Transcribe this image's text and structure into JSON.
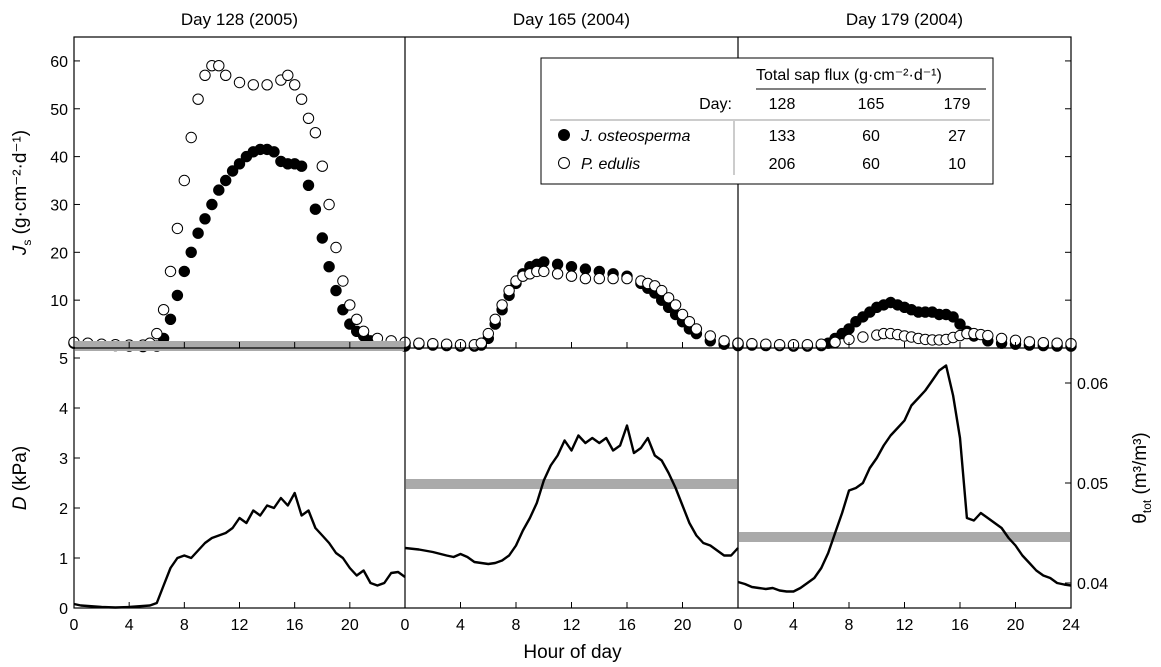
{
  "figure": {
    "panel_titles": [
      "Day 128 (2005)",
      "Day 165 (2004)",
      "Day 179 (2004)"
    ],
    "xlabel": "Hour of day",
    "top_ylabel": {
      "main": "J",
      "sub": "s",
      "rest": " (g·cm⁻²·d⁻¹)"
    },
    "bottom_left_ylabel": {
      "italic": "D",
      "rest": " (kPa)"
    },
    "bottom_right_ylabel": {
      "main": "θ",
      "sub": "tot",
      "rest": "  (m³/m³)"
    },
    "x_ticks": [
      "0",
      "4",
      "8",
      "12",
      "16",
      "20"
    ],
    "x_ticks_last": [
      "0",
      "4",
      "8",
      "12",
      "16",
      "20",
      "24"
    ],
    "top_y_ticks": [
      "10",
      "20",
      "30",
      "40",
      "50",
      "60"
    ],
    "D_ticks": [
      "0",
      "1",
      "2",
      "3",
      "4",
      "5"
    ],
    "theta_ticks": [
      "0.04",
      "0.05",
      "0.06"
    ],
    "colors": {
      "juniper": "#000000",
      "pinyon": "#ffffff",
      "theta_band": "#aaaaaa",
      "line": "#000000"
    }
  },
  "inset_table": {
    "header": "Total sap flux (g·cm⁻²·d⁻¹)",
    "day_label": "Day:",
    "days": [
      "128",
      "165",
      "179"
    ],
    "rows": [
      {
        "species": "J. osteosperma",
        "values": [
          "133",
          "60",
          "27"
        ]
      },
      {
        "species": "P. edulis",
        "values": [
          "206",
          "60",
          "10"
        ]
      }
    ]
  },
  "chart_data": [
    {
      "type": "scatter",
      "title": "Day 128 (2005)",
      "xlabel": "Hour of day",
      "ylabel": "Js (g·cm⁻²·d⁻¹)",
      "xlim": [
        0,
        24
      ],
      "ylim": [
        0,
        65
      ],
      "series": [
        {
          "name": "J. osteosperma",
          "marker": "filled-circle",
          "x": [
            0,
            1,
            2,
            3,
            4,
            5,
            6,
            6.5,
            7,
            7.5,
            8,
            8.5,
            9,
            9.5,
            10,
            10.5,
            11,
            11.5,
            12,
            12.5,
            13,
            13.5,
            14,
            14.5,
            15,
            15.5,
            16,
            16.5,
            17,
            17.5,
            18,
            18.5,
            19,
            19.5,
            20,
            20.5,
            21,
            21.5,
            22,
            23,
            24
          ],
          "y": [
            1,
            0.8,
            0.6,
            0.5,
            0.4,
            0.3,
            0.4,
            2,
            6,
            11,
            16,
            20,
            24,
            27,
            30,
            33,
            35,
            37,
            38.5,
            40,
            41,
            41.5,
            41.5,
            41,
            39,
            38.5,
            38.5,
            38,
            34,
            29,
            23,
            17,
            12,
            8,
            5,
            3.5,
            2.5,
            1.5,
            1,
            0.6,
            0.4
          ]
        },
        {
          "name": "P. edulis",
          "marker": "open-circle",
          "x": [
            0,
            1,
            2,
            3,
            4,
            5,
            5.5,
            6,
            6.5,
            7,
            7.5,
            8,
            8.5,
            9,
            9.5,
            10,
            10.5,
            11,
            12,
            13,
            14,
            15,
            15.5,
            16,
            16.5,
            17,
            17.5,
            18,
            18.5,
            19,
            19.5,
            20,
            20.5,
            21,
            22,
            23,
            24
          ],
          "y": [
            1.2,
            1,
            0.8,
            0.7,
            0.6,
            0.6,
            1,
            3,
            8,
            16,
            25,
            35,
            44,
            52,
            57,
            59,
            59,
            57,
            55.5,
            55,
            55,
            56,
            57,
            55,
            52,
            48,
            45,
            38,
            30,
            21,
            14,
            9,
            6,
            3.5,
            2,
            1.5,
            1
          ]
        }
      ]
    },
    {
      "type": "scatter",
      "title": "Day 165 (2004)",
      "xlabel": "Hour of day",
      "xlim": [
        0,
        24
      ],
      "ylim": [
        0,
        65
      ],
      "series": [
        {
          "name": "J. osteosperma",
          "marker": "filled-circle",
          "x": [
            0,
            1,
            2,
            3,
            4,
            5,
            5.5,
            6,
            6.5,
            7,
            7.5,
            8,
            8.5,
            9,
            9.5,
            10,
            11,
            12,
            13,
            14,
            15,
            16,
            17,
            17.5,
            18,
            18.5,
            19,
            19.5,
            20,
            20.5,
            21,
            22,
            23,
            24
          ],
          "y": [
            1,
            0.8,
            0.6,
            0.5,
            0.4,
            0.4,
            0.6,
            2,
            5,
            8,
            11,
            13.5,
            15.5,
            17,
            17.5,
            18,
            17.5,
            17,
            16.5,
            16,
            15.5,
            15,
            13.5,
            12.5,
            11.5,
            10,
            8.5,
            7,
            5.5,
            4,
            3,
            1.5,
            0.8,
            0.5
          ]
        },
        {
          "name": "P. edulis",
          "marker": "open-circle",
          "x": [
            0,
            1,
            2,
            3,
            4,
            5,
            5.5,
            6,
            6.5,
            7,
            7.5,
            8,
            8.5,
            9,
            9.5,
            10,
            11,
            12,
            13,
            14,
            15,
            16,
            17,
            17.5,
            18,
            18.5,
            19,
            19.5,
            20,
            20.5,
            21,
            22,
            23,
            24
          ],
          "y": [
            1.2,
            1,
            0.9,
            0.8,
            0.7,
            0.7,
            1,
            3,
            6,
            9,
            12,
            14,
            15,
            15.5,
            16,
            16,
            15.5,
            15,
            14.5,
            14.5,
            14.5,
            14.5,
            14,
            13.5,
            13,
            12,
            10.5,
            9,
            7,
            5.5,
            4,
            2.5,
            1.5,
            1
          ]
        }
      ]
    },
    {
      "type": "scatter",
      "title": "Day 179 (2004)",
      "xlabel": "Hour of day",
      "xlim": [
        0,
        24
      ],
      "ylim": [
        0,
        65
      ],
      "series": [
        {
          "name": "J. osteosperma",
          "marker": "filled-circle",
          "x": [
            0,
            1,
            2,
            3,
            4,
            5,
            6,
            6.5,
            7,
            7.5,
            8,
            8.5,
            9,
            9.5,
            10,
            10.5,
            11,
            11.5,
            12,
            12.5,
            13,
            13.5,
            14,
            14.5,
            15,
            15.5,
            16,
            16.5,
            17,
            18,
            19,
            20,
            21,
            22,
            23,
            24
          ],
          "y": [
            0.8,
            0.6,
            0.5,
            0.5,
            0.4,
            0.4,
            0.5,
            1,
            2,
            3,
            4,
            5.5,
            6.5,
            7.5,
            8.5,
            9,
            9.5,
            9,
            8.5,
            8,
            7.5,
            7.5,
            7.5,
            7,
            7,
            6.5,
            5,
            3.5,
            2.5,
            1.5,
            1,
            0.8,
            0.6,
            0.5,
            0.4,
            0.4
          ]
        },
        {
          "name": "P. edulis",
          "marker": "open-circle",
          "x": [
            0,
            1,
            2,
            3,
            4,
            5,
            6,
            7,
            8,
            9,
            10,
            10.5,
            11,
            11.5,
            12,
            12.5,
            13,
            13.5,
            14,
            14.5,
            15,
            15.5,
            16,
            16.5,
            17,
            17.5,
            18,
            19,
            20,
            21,
            22,
            23,
            24
          ],
          "y": [
            1,
            0.9,
            0.8,
            0.7,
            0.7,
            0.7,
            0.8,
            1.2,
            1.8,
            2.3,
            2.7,
            3,
            3,
            2.8,
            2.5,
            2.3,
            2,
            1.8,
            1.7,
            1.7,
            1.8,
            2.2,
            2.6,
            3,
            3,
            2.8,
            2.6,
            2,
            1.6,
            1.3,
            1.1,
            1,
            0.9
          ]
        }
      ]
    },
    {
      "type": "line",
      "title": "Day 128 (2005)",
      "xlabel": "Hour of day",
      "ylabel": "D (kPa)",
      "xlim": [
        0,
        24
      ],
      "ylim": [
        0,
        5.2
      ],
      "y2label": "θtot (m³/m³)",
      "y2lim": [
        0.0375,
        0.0635
      ],
      "theta_tot": 0.0637,
      "series": [
        {
          "name": "D",
          "x": [
            0,
            0.5,
            1,
            2,
            3,
            4,
            5,
            5.5,
            6,
            6.5,
            7,
            7.5,
            8,
            8.5,
            9,
            9.5,
            10,
            10.5,
            11,
            11.5,
            12,
            12.5,
            13,
            13.5,
            14,
            14.5,
            15,
            15.5,
            16,
            16.5,
            17,
            17.5,
            18,
            18.5,
            19,
            19.5,
            20,
            20.5,
            21,
            21.5,
            22,
            22.5,
            23,
            23.5,
            24
          ],
          "y": [
            0.08,
            0.05,
            0.04,
            0.02,
            0.01,
            0.02,
            0.04,
            0.05,
            0.1,
            0.45,
            0.8,
            1.0,
            1.05,
            1.0,
            1.15,
            1.3,
            1.4,
            1.45,
            1.5,
            1.6,
            1.8,
            1.7,
            1.95,
            1.85,
            2.05,
            2.0,
            2.2,
            2.05,
            2.3,
            1.85,
            1.95,
            1.6,
            1.45,
            1.3,
            1.1,
            1.0,
            0.8,
            0.65,
            0.75,
            0.5,
            0.45,
            0.5,
            0.7,
            0.72,
            0.62
          ]
        }
      ]
    },
    {
      "type": "line",
      "title": "Day 165 (2004)",
      "xlabel": "Hour of day",
      "xlim": [
        0,
        24
      ],
      "ylim": [
        0,
        5.2
      ],
      "y2lim": [
        0.0375,
        0.0635
      ],
      "theta_tot": 0.0499,
      "series": [
        {
          "name": "D",
          "x": [
            0,
            1,
            2,
            3,
            3.5,
            4,
            4.5,
            5,
            5.5,
            6,
            6.5,
            7,
            7.5,
            8,
            8.5,
            9,
            9.5,
            10,
            10.5,
            11,
            11.5,
            12,
            12.5,
            13,
            13.5,
            14,
            14.5,
            15,
            15.5,
            16,
            16.5,
            17,
            17.5,
            18,
            18.5,
            19,
            19.5,
            20,
            20.5,
            21,
            21.5,
            22,
            22.5,
            23,
            23.5,
            24
          ],
          "y": [
            1.2,
            1.17,
            1.12,
            1.05,
            1.02,
            1.08,
            1.02,
            0.92,
            0.9,
            0.88,
            0.9,
            0.95,
            1.05,
            1.25,
            1.55,
            1.8,
            2.1,
            2.55,
            2.85,
            3.05,
            3.35,
            3.15,
            3.45,
            3.3,
            3.4,
            3.3,
            3.4,
            3.15,
            3.25,
            3.65,
            3.1,
            3.2,
            3.4,
            3.05,
            2.95,
            2.7,
            2.4,
            2.05,
            1.7,
            1.45,
            1.3,
            1.25,
            1.15,
            1.05,
            1.05,
            1.2
          ]
        }
      ]
    },
    {
      "type": "line",
      "title": "Day 179 (2004)",
      "xlabel": "Hour of day",
      "xlim": [
        0,
        24
      ],
      "ylim": [
        0,
        5.2
      ],
      "y2label": "θtot (m³/m³)",
      "y2lim": [
        0.0375,
        0.0635
      ],
      "y2ticks": [
        0.04,
        0.05,
        0.06
      ],
      "theta_tot": 0.0446,
      "series": [
        {
          "name": "D",
          "x": [
            0,
            0.5,
            1,
            1.5,
            2,
            2.5,
            3,
            3.5,
            4,
            4.5,
            5,
            5.5,
            6,
            6.5,
            7,
            7.5,
            8,
            8.5,
            9,
            9.5,
            10,
            10.5,
            11,
            11.5,
            12,
            12.5,
            13,
            13.5,
            14,
            14.5,
            15,
            15.5,
            16,
            16.5,
            17,
            17.5,
            18,
            18.5,
            19,
            19.5,
            20,
            20.5,
            21,
            21.5,
            22,
            22.5,
            23,
            23.5,
            24
          ],
          "y": [
            0.52,
            0.48,
            0.42,
            0.4,
            0.38,
            0.4,
            0.35,
            0.33,
            0.33,
            0.4,
            0.5,
            0.6,
            0.8,
            1.1,
            1.5,
            1.9,
            2.35,
            2.4,
            2.5,
            2.8,
            3.0,
            3.25,
            3.45,
            3.6,
            3.75,
            4.05,
            4.2,
            4.35,
            4.55,
            4.75,
            4.85,
            4.25,
            3.4,
            1.8,
            1.75,
            1.9,
            1.8,
            1.7,
            1.6,
            1.4,
            1.25,
            1.05,
            0.9,
            0.75,
            0.65,
            0.6,
            0.5,
            0.47,
            0.45
          ]
        }
      ]
    }
  ]
}
